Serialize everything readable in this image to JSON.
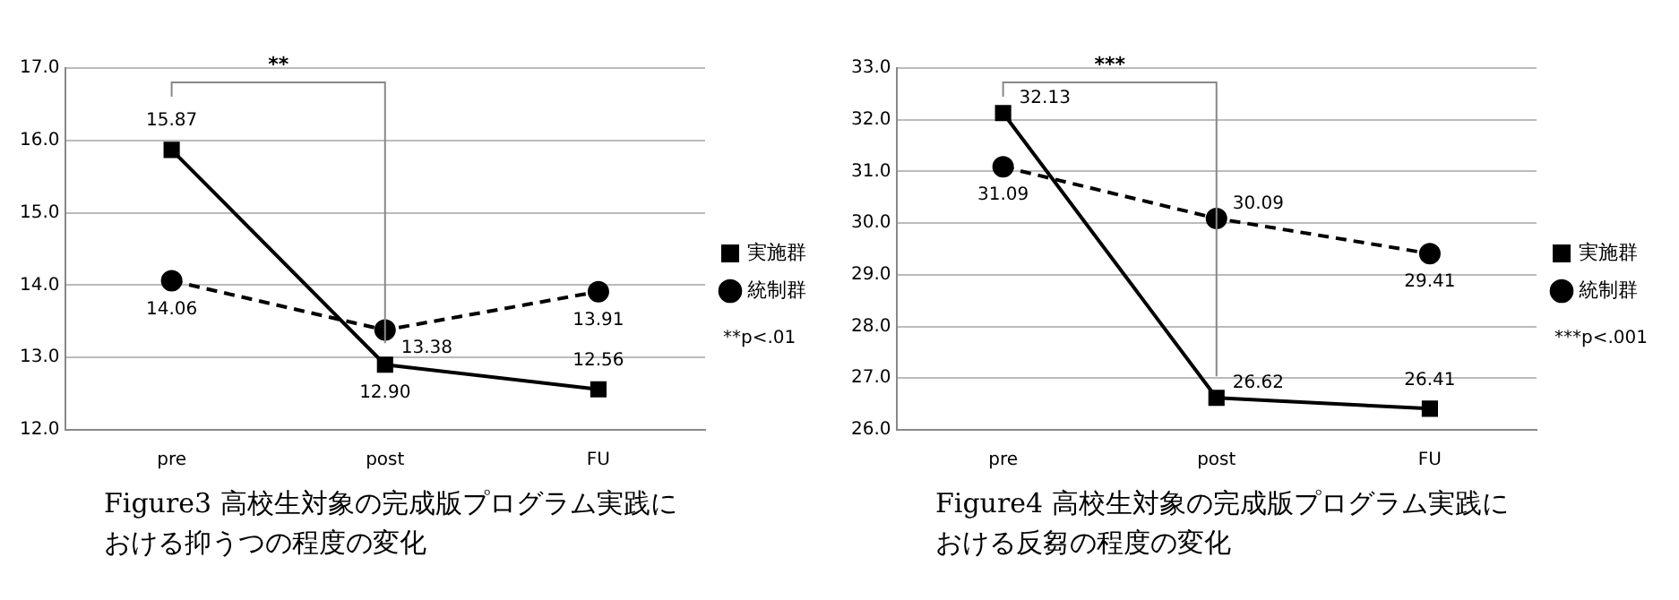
{
  "chart_data": [
    {
      "type": "line",
      "title": "Figure3 高校生対象の完成版プログラム実践における抑うつの程度の変化",
      "categories": [
        "pre",
        "post",
        "FU"
      ],
      "series": [
        {
          "name": "実施群",
          "color": "#000000",
          "marker": "square",
          "line_style": "solid",
          "values": [
            15.87,
            12.9,
            12.56
          ],
          "value_labels": [
            "15.87",
            "12.90",
            "12.56"
          ]
        },
        {
          "name": "統制群",
          "color": "#000000",
          "marker": "circle",
          "line_style": "dashed",
          "values": [
            14.06,
            13.38,
            13.91
          ],
          "value_labels": [
            "14.06",
            "13.38",
            "13.91"
          ]
        }
      ],
      "ylim": [
        12.0,
        17.0
      ],
      "yticks": [
        {
          "value": 12,
          "label": "12.0"
        },
        {
          "value": 13,
          "label": "13.0"
        },
        {
          "value": 14,
          "label": "14.0"
        },
        {
          "value": 15,
          "label": "15.0"
        },
        {
          "value": 16,
          "label": "16.0"
        },
        {
          "value": 17,
          "label": "17.0"
        }
      ],
      "grid": "y",
      "legend": "right",
      "annotations": [
        "**",
        "**p<.01"
      ]
    },
    {
      "type": "line",
      "title": "Figure4 高校生対象の完成版プログラム実践における反芻の程度の変化",
      "categories": [
        "pre",
        "post",
        "FU"
      ],
      "series": [
        {
          "name": "実施群",
          "color": "#000000",
          "marker": "square",
          "line_style": "solid",
          "values": [
            32.13,
            26.62,
            26.41
          ],
          "value_labels": [
            "32.13",
            "26.62",
            "26.41"
          ]
        },
        {
          "name": "統制群",
          "color": "#000000",
          "marker": "circle",
          "line_style": "dashed",
          "values": [
            31.09,
            30.09,
            29.41
          ],
          "value_labels": [
            "31.09",
            "30.09",
            "29.41"
          ]
        }
      ],
      "ylim": [
        26.0,
        33.0
      ],
      "yticks": [
        {
          "value": 26,
          "label": "26.0"
        },
        {
          "value": 27,
          "label": "27.0"
        },
        {
          "value": 28,
          "label": "28.0"
        },
        {
          "value": 29,
          "label": "29.0"
        },
        {
          "value": 30,
          "label": "30.0"
        },
        {
          "value": 31,
          "label": "31.0"
        },
        {
          "value": 32,
          "label": "32.0"
        },
        {
          "value": 33,
          "label": "33.0"
        }
      ],
      "grid": "y",
      "legend": "right",
      "annotations": [
        "***",
        "***p<.001"
      ]
    }
  ]
}
